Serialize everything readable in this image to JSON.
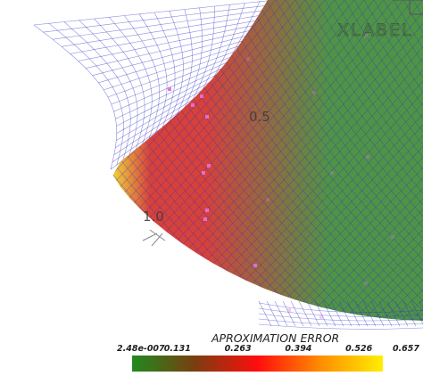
{
  "chart_data": {
    "type": "surface",
    "axis_title": "XLABEL",
    "x_tick_labels": [
      "1.0",
      "0.5"
    ],
    "colorbar": {
      "title": "APROXIMATION ERROR",
      "ticks": [
        "2.48e-007",
        "0.131",
        "0.263",
        "0.394",
        "0.526",
        "0.657"
      ],
      "colors": [
        "#1f8a1f",
        "#7a3e10",
        "#ff0d0d",
        "#ff8c00",
        "#ffee00"
      ],
      "range": [
        2.48e-07,
        0.657
      ]
    },
    "surface_colors": {
      "low": "#4f9446",
      "mid": "#d6413a",
      "high": "#f0d23a"
    },
    "mesh_color": "#2e2ec8",
    "point_color": "#e070d8",
    "grid": true,
    "legend_position": "bottom"
  }
}
